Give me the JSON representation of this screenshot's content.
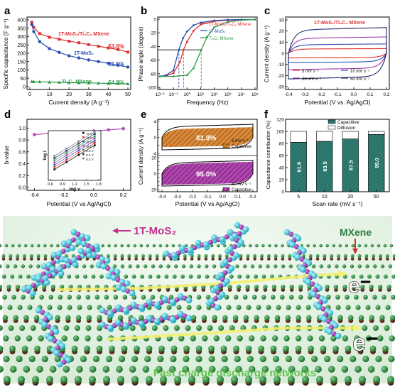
{
  "figure": {
    "panel_letters": [
      "a",
      "b",
      "c",
      "d",
      "e",
      "f",
      "g"
    ]
  },
  "chart_data": [
    {
      "panel": "a",
      "type": "line",
      "xlabel": "Current density (A g⁻¹)",
      "ylabel": "Specific capacitance (F g⁻¹)",
      "xlim": [
        0,
        50
      ],
      "ylim": [
        0,
        400
      ],
      "xticks": [
        0,
        10,
        20,
        30,
        40,
        50
      ],
      "yticks": [
        0,
        50,
        100,
        150,
        200,
        250,
        300,
        350,
        400
      ],
      "series": [
        {
          "name": "1T-MoS₂/Ti₃C₂ MXene",
          "color": "#e03030",
          "annotation": "53.6%",
          "x": [
            1,
            2,
            5,
            10,
            15,
            20,
            25,
            30,
            35,
            40,
            45,
            50
          ],
          "y": [
            386,
            355,
            318,
            296,
            284,
            272,
            263,
            252,
            242,
            232,
            222,
            207
          ]
        },
        {
          "name": "1T-MoS₂",
          "color": "#2a4fb0",
          "annotation": "31.6%",
          "x": [
            1,
            2,
            5,
            10,
            15,
            20,
            25,
            30,
            35,
            40,
            45,
            50
          ],
          "y": [
            372,
            330,
            270,
            228,
            205,
            185,
            172,
            160,
            150,
            140,
            128,
            117
          ]
        },
        {
          "name": "Ti₃C₂ MXene",
          "color": "#2e9a48",
          "annotation": "54.8%",
          "x": [
            1,
            2,
            5,
            10,
            15,
            20,
            25,
            30,
            35,
            40,
            45,
            50
          ],
          "y": [
            31,
            30,
            29,
            27,
            26,
            24,
            23,
            22,
            21,
            19,
            18,
            17
          ]
        }
      ]
    },
    {
      "panel": "b",
      "type": "line",
      "xlabel": "Frequency (Hz)",
      "ylabel": "Phase angle (degree)",
      "xscale": "log",
      "xlim": [
        0.01,
        100000
      ],
      "ylim": [
        -100,
        0
      ],
      "xticks": [
        "10⁻²",
        "10⁻¹",
        "10⁰",
        "10¹",
        "10²",
        "10³",
        "10⁴",
        "10⁵"
      ],
      "yticks": [
        -100,
        -80,
        -60,
        -40,
        -20,
        0
      ],
      "reference_line_y": -45,
      "reference_frequencies": [
        0.25,
        0.55,
        11
      ],
      "series": [
        {
          "name": "1T-MoS₂/Ti₃C₂ MXene",
          "color": "#e03030",
          "x": [
            0.01,
            0.03,
            0.1,
            0.3,
            0.55,
            1,
            3,
            10,
            100,
            1000,
            10000,
            100000
          ],
          "y": [
            -84,
            -83,
            -79,
            -63,
            -45,
            -33,
            -17,
            -8,
            -3,
            -1.5,
            -1,
            -0.5
          ]
        },
        {
          "name": "1T-MoS₂",
          "color": "#2a4fb0",
          "x": [
            0.01,
            0.03,
            0.1,
            0.25,
            0.5,
            1,
            3,
            10,
            100,
            1000,
            10000,
            100000
          ],
          "y": [
            -84,
            -82,
            -75,
            -45,
            -28,
            -18,
            -9,
            -5,
            -2,
            -1,
            -0.5,
            -0.5
          ]
        },
        {
          "name": "Ti₃C₂ MXene",
          "color": "#2e9a48",
          "x": [
            0.01,
            0.1,
            1,
            3,
            11,
            30,
            100,
            1000,
            10000,
            100000
          ],
          "y": [
            -84,
            -84,
            -82,
            -72,
            -45,
            -26,
            -12,
            -4,
            -1.5,
            -0.5
          ]
        }
      ]
    },
    {
      "panel": "c",
      "type": "line",
      "title": "1T-MoS₂/Ti₃C₂ MXene",
      "xlabel": "Potential (V vs. Ag/AgCl)",
      "ylabel": "Current density (A g⁻¹)",
      "xlim": [
        -0.4,
        0.2
      ],
      "ylim": [
        -30,
        30
      ],
      "xticks": [
        -0.4,
        -0.3,
        -0.2,
        -0.1,
        0.0,
        0.1,
        0.2
      ],
      "yticks": [
        -30,
        -20,
        -10,
        0,
        10,
        20,
        30
      ],
      "series": [
        {
          "name": "5 mV s⁻¹",
          "color": "#e03030",
          "scan_rate": 5,
          "amplitude": 4
        },
        {
          "name": "10 mV s⁻¹",
          "color": "#2a4fb0",
          "scan_rate": 10,
          "amplitude": 8
        },
        {
          "name": "20 mV s⁻¹",
          "color": "#9b3aa8",
          "scan_rate": 20,
          "amplitude": 14
        },
        {
          "name": "50 mV s⁻¹",
          "color": "#1e2a6a",
          "scan_rate": 50,
          "amplitude": 22
        }
      ]
    },
    {
      "panel": "d",
      "type": "scatter",
      "xlabel": "Potential (V vs Ag/AgCl)",
      "ylabel": "b-value",
      "xlim": [
        -0.45,
        0.25
      ],
      "ylim": [
        0.0,
        1.1
      ],
      "xticks": [
        -0.4,
        -0.2,
        0.0,
        0.2
      ],
      "yticks": [
        0.0,
        0.2,
        0.4,
        0.6,
        0.8,
        1.0
      ],
      "x": [
        -0.4,
        -0.3,
        -0.2,
        -0.1,
        0.0,
        0.1,
        0.2
      ],
      "y": [
        0.89,
        0.91,
        0.92,
        0.93,
        0.95,
        0.97,
        0.99
      ],
      "color": "#b04ab8",
      "inset": {
        "xlabel": "log v",
        "ylabel": "log i",
        "xlim": [
          0.6,
          1.8
        ],
        "xticks": [
          0.6,
          0.9,
          1.2,
          1.5,
          1.8
        ],
        "legend": [
          "-0.4 V",
          "-0.3 V",
          "-0.2 V",
          "-0.1 V",
          "0.0 V",
          "0.1 V",
          "0.2 V"
        ]
      }
    },
    {
      "panel": "e",
      "type": "area",
      "xlabel": "Potential (V vs Ag/AgCl)",
      "ylabel": "Current density (A g⁻¹)",
      "xlim": [
        -0.4,
        0.2
      ],
      "xticks": [
        -0.4,
        -0.3,
        -0.2,
        -0.1,
        0.0,
        0.1,
        0.2
      ],
      "subplots": [
        {
          "scan_rate_label": "5 mV s⁻¹",
          "capacitive_percent": "81.9%",
          "fill_color": "#cf7a2a",
          "ylim": [
            -4,
            4
          ],
          "yticks": [
            -4,
            -2,
            0,
            2,
            4
          ]
        },
        {
          "scan_rate_label": "50 mV s⁻¹",
          "capacitive_percent": "95.0%",
          "fill_color": "#a0329c",
          "ylim": [
            -20,
            20
          ],
          "yticks": [
            -20,
            -15,
            -10,
            -5,
            0,
            5,
            10,
            15,
            20
          ]
        }
      ],
      "legend_label": "Capacitive"
    },
    {
      "panel": "f",
      "type": "bar",
      "xlabel": "Scan rate (mV s⁻¹)",
      "ylabel": "Capacitance contribution (%)",
      "ylim": [
        0,
        120
      ],
      "yticks": [
        0,
        20,
        40,
        60,
        80,
        100,
        120
      ],
      "categories": [
        "5",
        "10",
        "20",
        "50"
      ],
      "series": [
        {
          "name": "Capacitive",
          "color": "#2f7d72",
          "values": [
            81.9,
            83.5,
            87.5,
            95.0
          ]
        },
        {
          "name": "Diffusion",
          "color": "#ffffff",
          "values": [
            18.1,
            16.5,
            12.5,
            5.0
          ]
        }
      ],
      "bar_labels": [
        "81.9",
        "83.5",
        "87.5",
        "95.0"
      ]
    }
  ],
  "illustration": {
    "panel": "g",
    "labels": {
      "mos2": "1T-MoS₂",
      "mxene": "MXene",
      "electron_1": "e⁻",
      "electron_2": "e⁻",
      "caption": "Fast charge discharge networks"
    },
    "colors": {
      "mxene_atoms": "#2e8a3e",
      "metal_atoms": "#5a2a1a",
      "sulfur_atoms": "#40d0e0",
      "molybdenum_atoms": "#b040c0",
      "arrows": "#f0f060"
    }
  }
}
